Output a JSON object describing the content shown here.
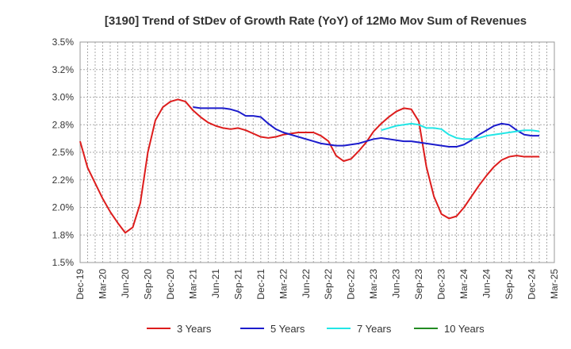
{
  "chart_data": {
    "type": "line",
    "title": "[3190]  Trend of StDev of Growth Rate (YoY) of 12Mo Mov Sum of Revenues",
    "xlabel": "",
    "ylabel": "",
    "ylim": [
      1.5,
      3.5
    ],
    "y_ticks": [
      1.5,
      1.75,
      2.0,
      2.25,
      2.5,
      2.75,
      3.0,
      3.25,
      3.5
    ],
    "y_tick_labels": [
      "1.5%",
      "1.8%",
      "2.0%",
      "2.2%",
      "2.5%",
      "2.8%",
      "3.0%",
      "3.2%",
      "3.5%"
    ],
    "x_tick_labels": [
      "Dec-19",
      "Mar-20",
      "Jun-20",
      "Sep-20",
      "Dec-20",
      "Mar-21",
      "Jun-21",
      "Sep-21",
      "Dec-21",
      "Mar-22",
      "Jun-22",
      "Sep-22",
      "Dec-22",
      "Mar-23",
      "Jun-23",
      "Sep-23",
      "Dec-23",
      "Mar-24",
      "Jun-24",
      "Sep-24",
      "Dec-24",
      "Mar-25"
    ],
    "x_start_month": "Dec-2019",
    "x_months_total": 63,
    "grid": true,
    "legend_position": "bottom",
    "series": [
      {
        "name": "3 Years",
        "color": "#dd1c1c",
        "start_index": 0,
        "values": [
          2.6,
          2.36,
          2.22,
          2.08,
          1.96,
          1.86,
          1.77,
          1.82,
          2.04,
          2.5,
          2.79,
          2.91,
          2.96,
          2.98,
          2.96,
          2.88,
          2.82,
          2.77,
          2.74,
          2.72,
          2.71,
          2.72,
          2.7,
          2.67,
          2.64,
          2.63,
          2.64,
          2.66,
          2.67,
          2.68,
          2.68,
          2.68,
          2.65,
          2.6,
          2.47,
          2.42,
          2.44,
          2.51,
          2.59,
          2.69,
          2.76,
          2.82,
          2.87,
          2.9,
          2.89,
          2.78,
          2.37,
          2.1,
          1.94,
          1.9,
          1.92,
          2.0,
          2.1,
          2.2,
          2.29,
          2.37,
          2.43,
          2.46,
          2.47,
          2.46,
          2.46,
          2.46
        ]
      },
      {
        "name": "5 Years",
        "color": "#1c1ccc",
        "start_index": 15,
        "values": [
          2.91,
          2.9,
          2.9,
          2.9,
          2.9,
          2.89,
          2.87,
          2.83,
          2.83,
          2.82,
          2.76,
          2.71,
          2.68,
          2.66,
          2.64,
          2.62,
          2.6,
          2.58,
          2.57,
          2.56,
          2.56,
          2.57,
          2.58,
          2.6,
          2.62,
          2.63,
          2.62,
          2.61,
          2.6,
          2.6,
          2.59,
          2.58,
          2.57,
          2.56,
          2.55,
          2.55,
          2.57,
          2.61,
          2.66,
          2.7,
          2.74,
          2.76,
          2.75,
          2.7,
          2.66,
          2.65,
          2.65
        ]
      },
      {
        "name": "7 Years",
        "color": "#22e6e6",
        "start_index": 40,
        "values": [
          2.7,
          2.72,
          2.74,
          2.75,
          2.76,
          2.75,
          2.72,
          2.72,
          2.71,
          2.66,
          2.63,
          2.62,
          2.62,
          2.63,
          2.65,
          2.66,
          2.67,
          2.68,
          2.69,
          2.7,
          2.7,
          2.69
        ]
      },
      {
        "name": "10 Years",
        "color": "#228b22",
        "start_index": 0,
        "values": []
      }
    ]
  }
}
